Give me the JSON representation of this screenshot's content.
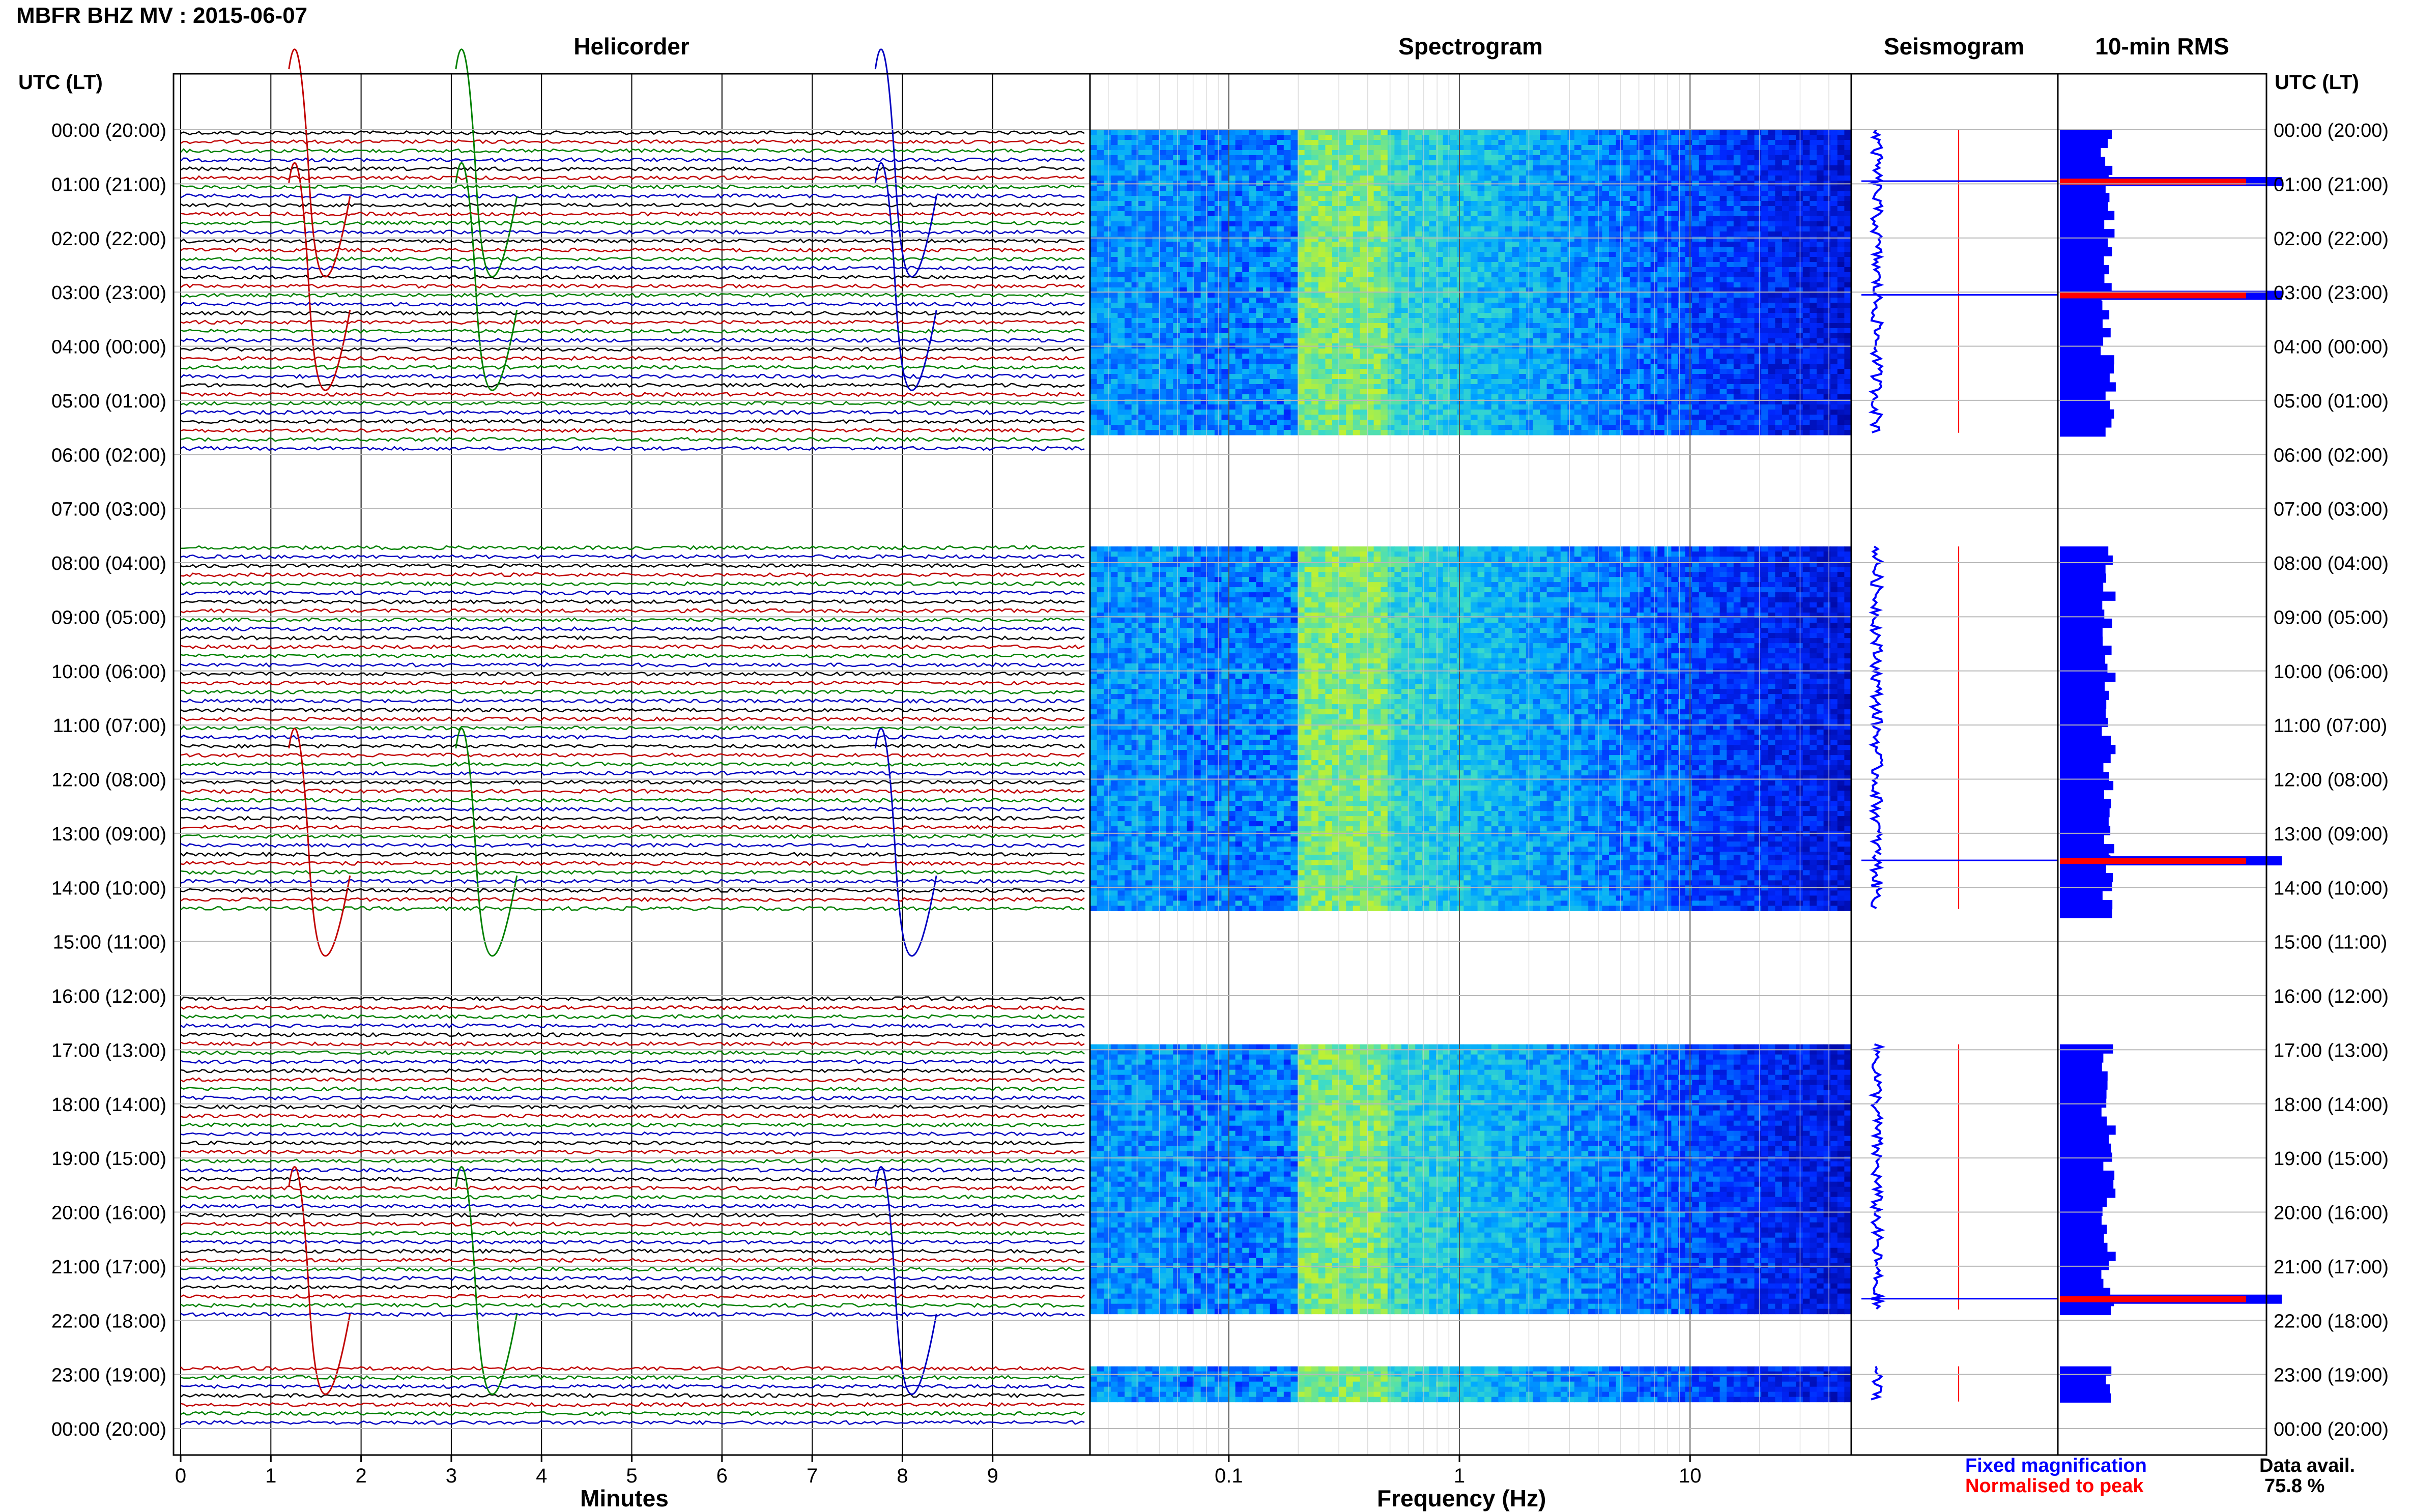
{
  "title": "MBFR BHZ MV : 2015-06-07",
  "panels": {
    "helicorder": "Helicorder",
    "spectrogram": "Spectrogram",
    "seismogram": "Seismogram",
    "rms": "10-min RMS"
  },
  "time_axis_label": "UTC (LT)",
  "time_labels": [
    "00:00 (20:00)",
    "01:00 (21:00)",
    "02:00 (22:00)",
    "03:00 (23:00)",
    "04:00 (00:00)",
    "05:00 (01:00)",
    "06:00 (02:00)",
    "07:00 (03:00)",
    "08:00 (04:00)",
    "09:00 (05:00)",
    "10:00 (06:00)",
    "11:00 (07:00)",
    "12:00 (08:00)",
    "13:00 (09:00)",
    "14:00 (10:00)",
    "15:00 (11:00)",
    "16:00 (12:00)",
    "17:00 (13:00)",
    "18:00 (14:00)",
    "19:00 (15:00)",
    "20:00 (16:00)",
    "21:00 (17:00)",
    "22:00 (18:00)",
    "23:00 (19:00)",
    "00:00 (20:00)"
  ],
  "helicorder_xlabel": "Minutes",
  "helicorder_ticks": [
    "0",
    "1",
    "2",
    "3",
    "4",
    "5",
    "6",
    "7",
    "8",
    "9"
  ],
  "spectrogram_xlabel": "Frequency (Hz)",
  "spectrogram_ticks": [
    "0.1",
    "1",
    "10"
  ],
  "legend": {
    "fixed": "Fixed magnification",
    "normalised": "Normalised to peak"
  },
  "data_availability": {
    "label": "Data avail.",
    "value": "75.8 %"
  },
  "colors": {
    "trace_cycle": [
      "#000000",
      "#c00000",
      "#008000",
      "#0000c0"
    ],
    "rms_fill": "#0000ff",
    "peak": "#ff0000",
    "legend_fixed": "#0000ff",
    "legend_normalised": "#ff0000"
  },
  "chart_data": [
    {
      "type": "line",
      "name": "helicorder",
      "xlabel": "Minutes",
      "xlim": [
        0,
        10
      ],
      "ylim_hours_utc": [
        0,
        24
      ],
      "line_interval_minutes": 10,
      "data_gaps_hours_utc": [
        [
          6.0,
          7.6
        ],
        [
          14.4,
          16.0
        ],
        [
          22.0,
          22.8
        ]
      ]
    },
    {
      "type": "heatmap",
      "name": "spectrogram",
      "xlabel": "Frequency (Hz)",
      "x_scale": "log",
      "xlim": [
        0.025,
        50
      ],
      "ylim_hours_utc": [
        0,
        24
      ],
      "data_blocks_hours_utc": [
        [
          0.0,
          5.6
        ],
        [
          7.7,
          13.4
        ],
        [
          13.4,
          14.4
        ],
        [
          16.9,
          21.8
        ],
        [
          22.85,
          23.5
        ]
      ],
      "peak_energy_band_hz": [
        0.2,
        0.5
      ]
    },
    {
      "type": "line",
      "name": "seismogram",
      "ylim_hours_utc": [
        0,
        24
      ],
      "events_hours_utc": [
        0.95,
        3.05,
        13.5,
        21.6
      ]
    },
    {
      "type": "bar",
      "name": "10-min RMS",
      "orientation": "horizontal",
      "ylim_hours_utc": [
        0,
        24
      ],
      "peaks_hours_utc": [
        0.95,
        3.05,
        13.5,
        21.6
      ]
    }
  ]
}
